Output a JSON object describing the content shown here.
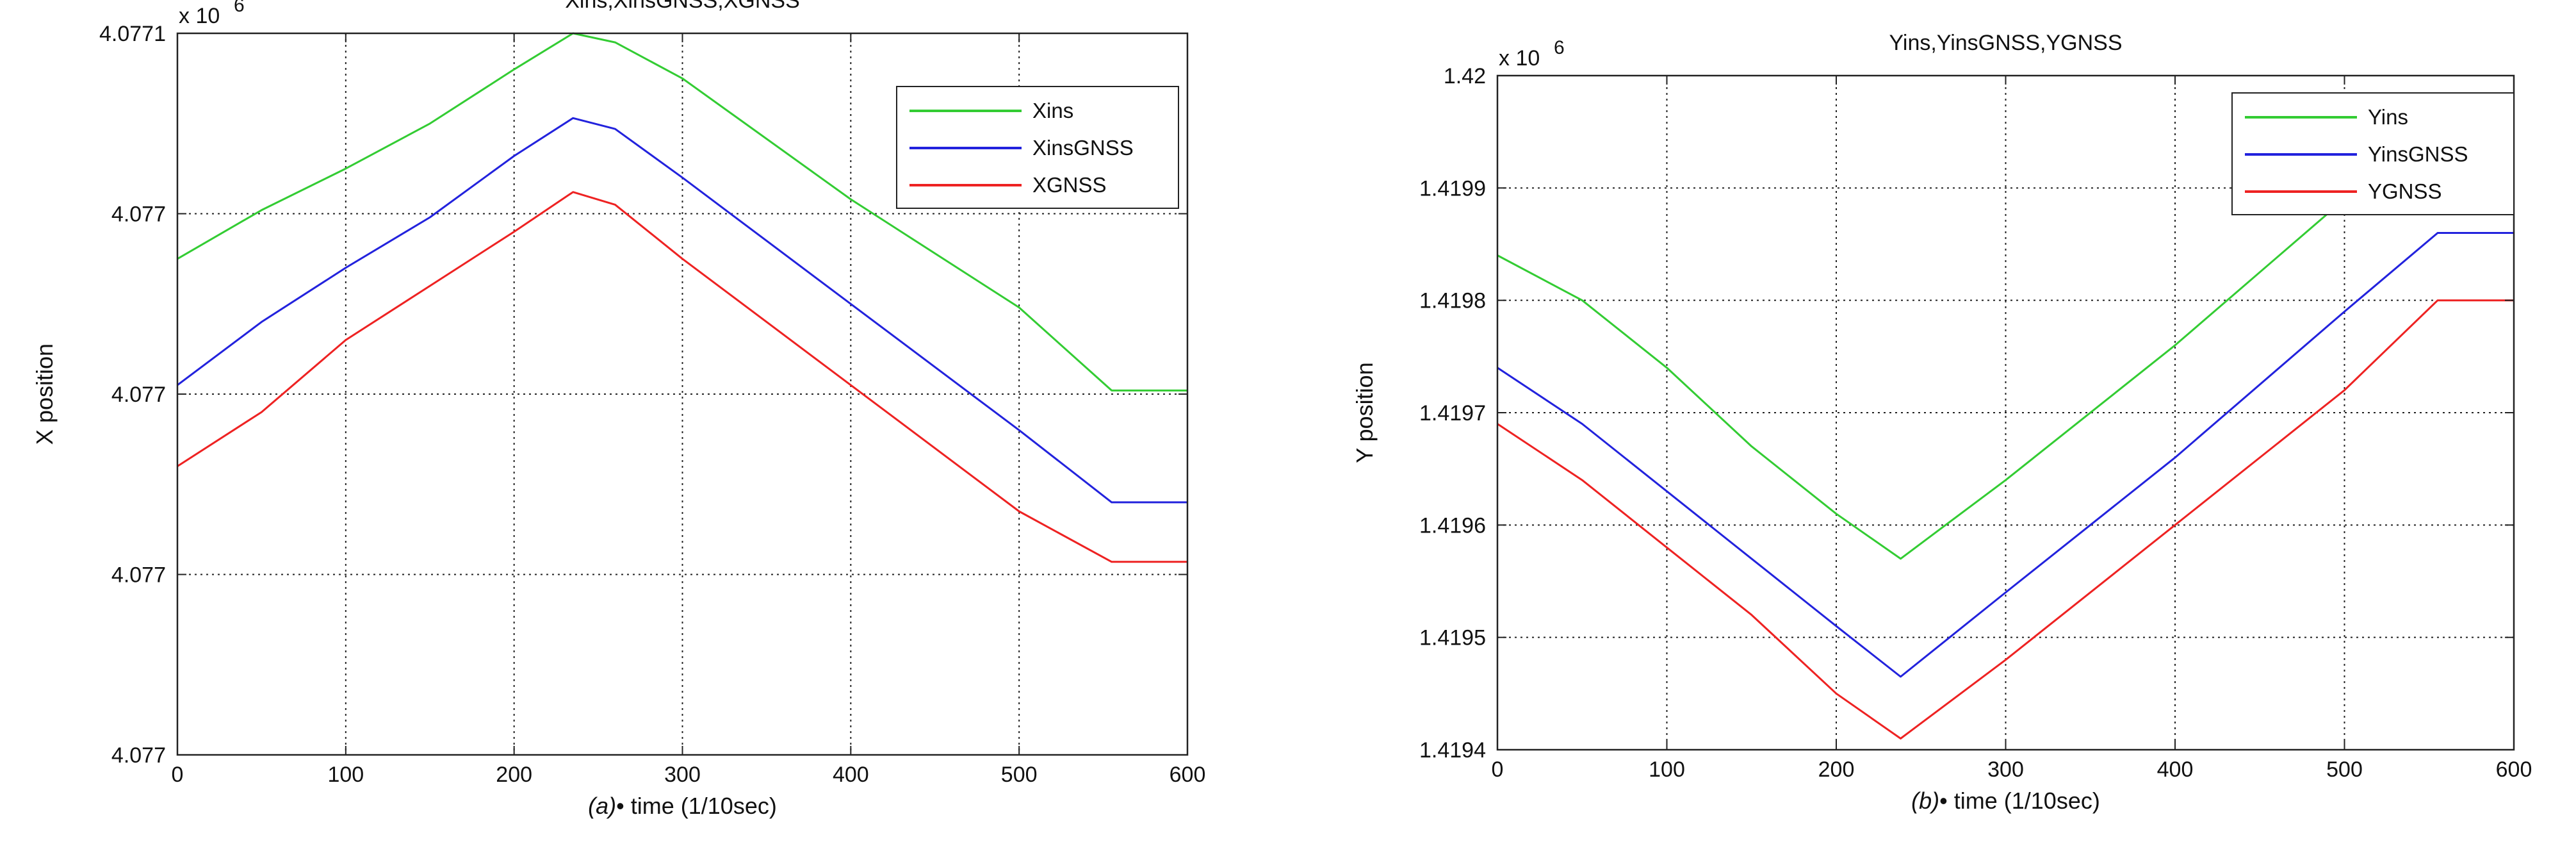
{
  "chart_data": [
    {
      "type": "line",
      "title": "Xins,XinsGNSS,XGNSS",
      "xlabel_prefix": "(a)",
      "xlabel": "• time (1/10sec)",
      "ylabel": "X position",
      "y_exponent": "x 10",
      "y_exponent_power": "6",
      "xlim": [
        0,
        600
      ],
      "ylim": [
        0,
        4
      ],
      "x_ticks": [
        0,
        100,
        200,
        300,
        400,
        500,
        600
      ],
      "x_tick_labels": [
        "0",
        "100",
        "200",
        "300",
        "400",
        "500",
        "600"
      ],
      "y_ticks": [
        0,
        1,
        2,
        3,
        4
      ],
      "y_tick_labels": [
        "4.077",
        "4.077",
        "4.077",
        "4.077",
        "4.0771"
      ],
      "grid": true,
      "legend_position": "top-right",
      "series": [
        {
          "name": "Xins",
          "color": "#33cc33",
          "x": [
            0,
            50,
            100,
            150,
            200,
            235,
            260,
            300,
            400,
            500,
            555,
            600
          ],
          "y": [
            2.75,
            3.02,
            3.25,
            3.5,
            3.8,
            4.0,
            3.95,
            3.75,
            3.08,
            2.48,
            2.02,
            2.02
          ]
        },
        {
          "name": "XinsGNSS",
          "color": "#2222dd",
          "x": [
            0,
            50,
            100,
            150,
            200,
            235,
            260,
            300,
            400,
            500,
            555,
            600
          ],
          "y": [
            2.05,
            2.4,
            2.7,
            2.98,
            3.32,
            3.53,
            3.47,
            3.2,
            2.5,
            1.8,
            1.4,
            1.4
          ]
        },
        {
          "name": "XGNSS",
          "color": "#ee2222",
          "x": [
            0,
            50,
            100,
            150,
            200,
            235,
            260,
            300,
            400,
            500,
            555,
            600
          ],
          "y": [
            1.6,
            1.9,
            2.3,
            2.6,
            2.9,
            3.12,
            3.05,
            2.75,
            2.05,
            1.35,
            1.07,
            1.07
          ]
        }
      ]
    },
    {
      "type": "line",
      "title": "Yins,YinsGNSS,YGNSS",
      "xlabel_prefix": "(b)",
      "xlabel": "• time (1/10sec)",
      "ylabel": "Y position",
      "y_exponent": "x 10",
      "y_exponent_power": "6",
      "xlim": [
        0,
        600
      ],
      "ylim": [
        1.4194,
        1.42
      ],
      "x_ticks": [
        0,
        100,
        200,
        300,
        400,
        500,
        600
      ],
      "x_tick_labels": [
        "0",
        "100",
        "200",
        "300",
        "400",
        "500",
        "600"
      ],
      "y_ticks": [
        1.4194,
        1.4195,
        1.4196,
        1.4197,
        1.4198,
        1.4199,
        1.42
      ],
      "y_tick_labels": [
        "1.4194",
        "1.4195",
        "1.4196",
        "1.4197",
        "1.4198",
        "1.4199",
        "1.42"
      ],
      "grid": true,
      "legend_position": "top-right",
      "series": [
        {
          "name": "Yins",
          "color": "#33cc33",
          "x": [
            0,
            50,
            100,
            150,
            200,
            238,
            300,
            400,
            500,
            550,
            600
          ],
          "y": [
            1.41984,
            1.4198,
            1.41974,
            1.41967,
            1.41961,
            1.41957,
            1.41964,
            1.41976,
            1.41989,
            1.41996,
            1.41996
          ]
        },
        {
          "name": "YinsGNSS",
          "color": "#2222dd",
          "x": [
            0,
            50,
            100,
            150,
            200,
            238,
            300,
            400,
            500,
            555,
            600
          ],
          "y": [
            1.41974,
            1.41969,
            1.41963,
            1.41957,
            1.41951,
            1.419465,
            1.41954,
            1.41966,
            1.41979,
            1.41986,
            1.41986
          ]
        },
        {
          "name": "YGNSS",
          "color": "#ee2222",
          "x": [
            0,
            50,
            100,
            150,
            200,
            238,
            300,
            400,
            500,
            555,
            600
          ],
          "y": [
            1.41969,
            1.41964,
            1.41958,
            1.41952,
            1.41945,
            1.41941,
            1.41948,
            1.4196,
            1.41972,
            1.4198,
            1.4198
          ]
        }
      ]
    }
  ]
}
